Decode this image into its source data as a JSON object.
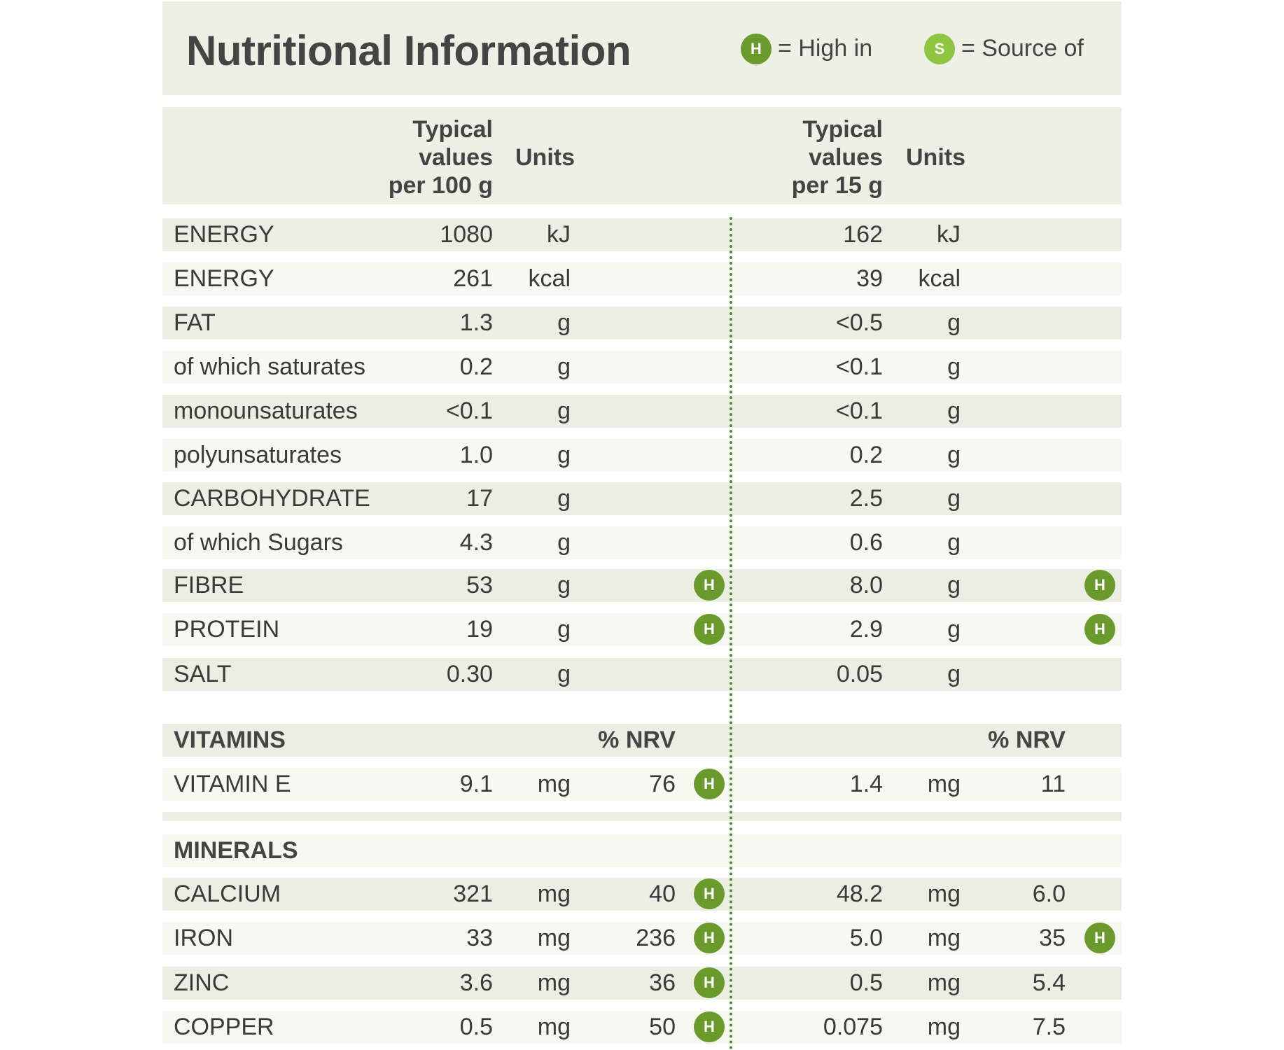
{
  "title": "Nutritional Information",
  "legend": {
    "high_badge": "H",
    "high_label": "= High in",
    "source_badge": "S",
    "source_label": "= Source of"
  },
  "header": {
    "col100": [
      "Typical",
      "values",
      "per 100 g"
    ],
    "col15": [
      "Typical",
      "values",
      "per 15 g"
    ],
    "units": "Units"
  },
  "rows": [
    {
      "label": "ENERGY",
      "v100": "1080",
      "u100": "kJ",
      "v15": "162",
      "u15": "kJ"
    },
    {
      "label": "ENERGY",
      "v100": "261",
      "u100": "kcal",
      "v15": "39",
      "u15": "kcal"
    },
    {
      "label": "FAT",
      "v100": "1.3",
      "u100": "g",
      "v15": "<0.5",
      "u15": "g"
    },
    {
      "label": "of which saturates",
      "v100": "0.2",
      "u100": "g",
      "v15": "<0.1",
      "u15": "g"
    },
    {
      "label": "monounsaturates",
      "v100": "<0.1",
      "u100": "g",
      "v15": "<0.1",
      "u15": "g"
    },
    {
      "label": "polyunsaturates",
      "v100": "1.0",
      "u100": "g",
      "v15": "0.2",
      "u15": "g"
    },
    {
      "label": "CARBOHYDRATE",
      "v100": "17",
      "u100": "g",
      "v15": "2.5",
      "u15": "g"
    },
    {
      "label": "of which Sugars",
      "v100": "4.3",
      "u100": "g",
      "v15": "0.6",
      "u15": "g"
    },
    {
      "label": "FIBRE",
      "v100": "53",
      "u100": "g",
      "h100": "H",
      "v15": "8.0",
      "u15": "g",
      "h15": "H"
    },
    {
      "label": "PROTEIN",
      "v100": "19",
      "u100": "g",
      "h100": "H",
      "v15": "2.9",
      "u15": "g",
      "h15": "H"
    },
    {
      "label": "SALT",
      "v100": "0.30",
      "u100": "g",
      "v15": "0.05",
      "u15": "g"
    },
    {
      "label": "VITAMINS",
      "section": true,
      "n100": "% NRV",
      "n15": "% NRV"
    },
    {
      "label": "VITAMIN E",
      "v100": "9.1",
      "u100": "mg",
      "n100": "76",
      "h100": "H",
      "v15": "1.4",
      "u15": "mg",
      "n15": "11"
    },
    {
      "label": "MINERALS",
      "section": true
    },
    {
      "label": "CALCIUM",
      "v100": "321",
      "u100": "mg",
      "n100": "40",
      "h100": "H",
      "v15": "48.2",
      "u15": "mg",
      "n15": "6.0"
    },
    {
      "label": "IRON",
      "v100": "33",
      "u100": "mg",
      "n100": "236",
      "h100": "H",
      "v15": "5.0",
      "u15": "mg",
      "n15": "35",
      "h15": "H"
    },
    {
      "label": "ZINC",
      "v100": "3.6",
      "u100": "mg",
      "n100": "36",
      "h100": "H",
      "v15": "0.5",
      "u15": "mg",
      "n15": "5.4"
    },
    {
      "label": "COPPER",
      "v100": "0.5",
      "u100": "mg",
      "n100": "50",
      "h100": "H",
      "v15": "0.075",
      "u15": "mg",
      "n15": "7.5"
    }
  ]
}
